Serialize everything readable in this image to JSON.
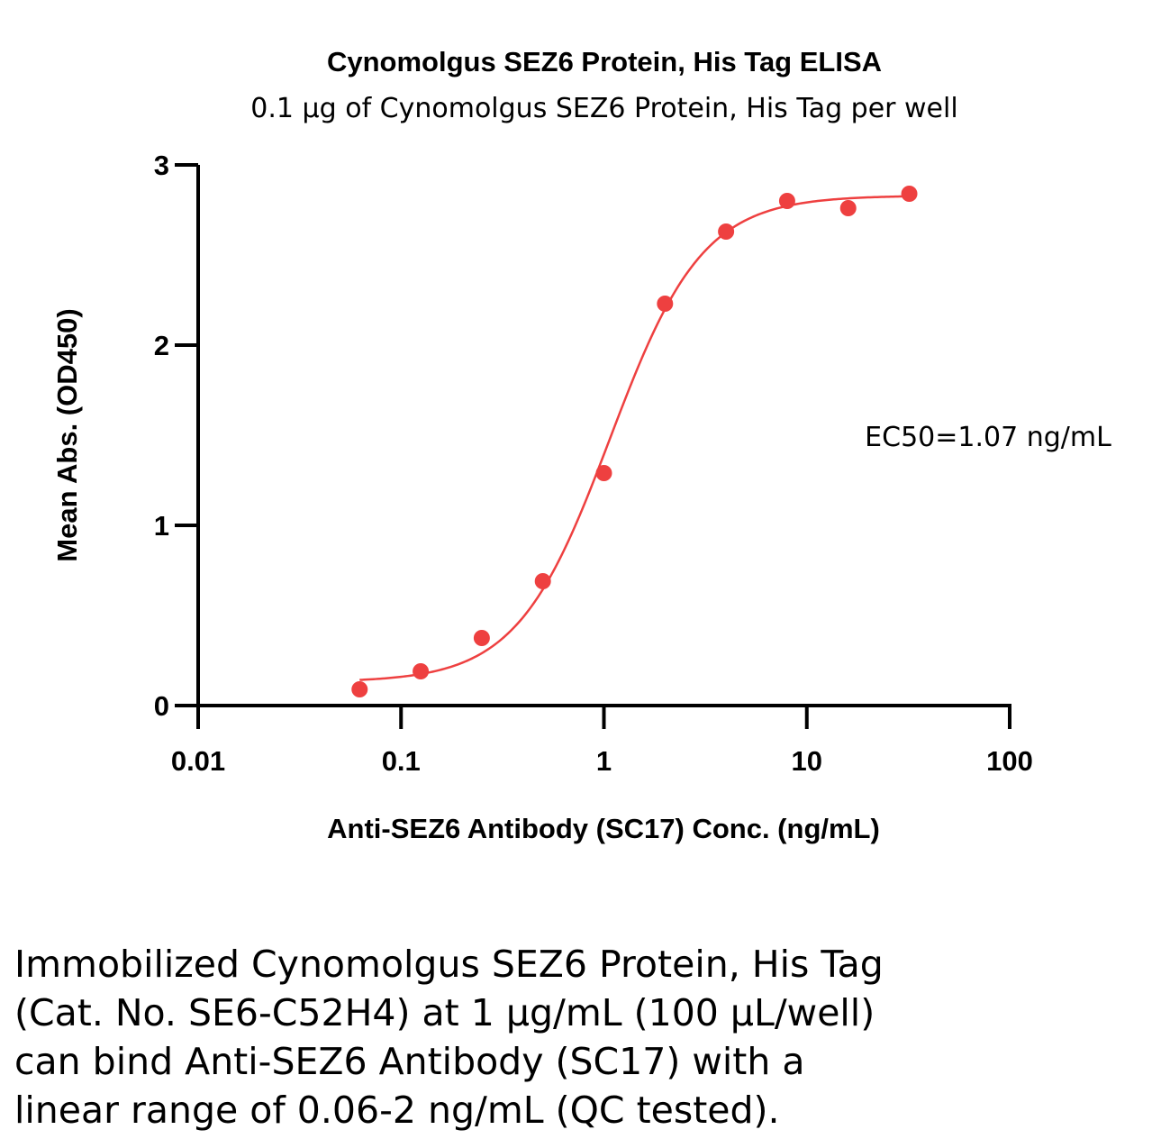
{
  "chart_data": {
    "type": "scatter",
    "title": "Cynomolgus SEZ6 Protein, His Tag ELISA",
    "subtitle": "0.1 µg of Cynomolgus SEZ6 Protein, His Tag per well",
    "xlabel": "Anti-SEZ6 Antibody (SC17) Conc. (ng/mL)",
    "ylabel": "Mean Abs. (OD450)",
    "xscale": "log",
    "xlim": [
      0.01,
      100
    ],
    "ylim": [
      0,
      3
    ],
    "x_ticks": [
      0.01,
      0.1,
      1,
      10,
      100
    ],
    "x_tick_labels": [
      "0.01",
      "0.1",
      "1",
      "10",
      "100"
    ],
    "y_ticks": [
      0,
      1,
      2,
      3
    ],
    "y_tick_labels": [
      "0",
      "1",
      "2",
      "3"
    ],
    "grid": false,
    "color": "#ee4040",
    "series": [
      {
        "x": [
          0.0625,
          0.125,
          0.25,
          0.5,
          1,
          2,
          4,
          8,
          16,
          32
        ],
        "y": [
          0.09,
          0.19,
          0.375,
          0.69,
          1.29,
          2.23,
          2.63,
          2.8,
          2.76,
          2.84
        ]
      }
    ],
    "fit": {
      "model": "4PL",
      "bottom": 0.13,
      "top": 2.83,
      "ec50": 1.07,
      "hill": 1.9
    },
    "annotation": "EC50=1.07 ng/mL"
  },
  "caption": {
    "lines": [
      "Immobilized Cynomolgus SEZ6 Protein, His Tag",
      "(Cat. No. SE6-C52H4) at 1 µg/mL (100 µL/well)",
      "can bind Anti-SEZ6 Antibody (SC17) with a",
      "linear range of 0.06-2 ng/mL (QC tested)."
    ]
  }
}
